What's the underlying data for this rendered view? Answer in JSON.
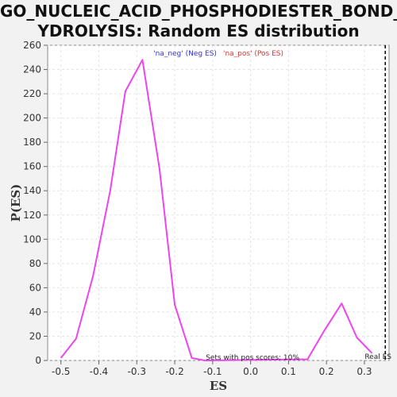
{
  "chart_data": {
    "type": "line",
    "title_line1": "GO_NUCLEIC_ACID_PHOSPHODIESTER_BOND_H",
    "title_line2": "YDROLYSIS: Random ES distribution",
    "xlabel": "ES",
    "ylabel": "P(ES)",
    "xlim": [
      -0.535,
      0.365
    ],
    "ylim": [
      0,
      260
    ],
    "x_ticks": [
      -0.5,
      -0.4,
      -0.3,
      -0.2,
      -0.1,
      0.0,
      0.1,
      0.2,
      0.3
    ],
    "x_tick_labels": [
      "-0.5",
      "-0.4",
      "-0.3",
      "-0.2",
      "-0.1",
      "0.0",
      "0.1",
      "0.2",
      "0.3"
    ],
    "y_ticks": [
      0,
      20,
      40,
      60,
      80,
      100,
      120,
      140,
      160,
      180,
      200,
      220,
      240,
      260
    ],
    "y_tick_labels": [
      "0",
      "20",
      "40",
      "60",
      "80",
      "100",
      "120",
      "140",
      "160",
      "180",
      "200",
      "220",
      "240",
      "260"
    ],
    "grid": true,
    "series": [
      {
        "name": "'na_neg' (Neg ES)",
        "color": "#ee44ee",
        "x": [
          -0.5,
          -0.46,
          -0.415,
          -0.37,
          -0.33,
          -0.285,
          -0.24,
          -0.2,
          -0.155,
          -0.12
        ],
        "y": [
          2,
          18,
          70,
          140,
          222,
          248,
          158,
          46,
          2,
          0
        ]
      },
      {
        "name": "'na_pos' (Pos ES)",
        "color": "#ee44ee",
        "x": [
          -0.12,
          0.15,
          0.195,
          0.24,
          0.28,
          0.32
        ],
        "y": [
          0,
          1,
          25,
          47,
          19,
          6
        ]
      }
    ],
    "legend": [
      {
        "label": "'na_neg' (Neg ES)",
        "color": "#3333cc"
      },
      {
        "label": "'na_pos' (Pos ES)",
        "color": "#dd3333"
      }
    ],
    "legend_position": "top-center",
    "annotation": "Sets with pos scores: 10%",
    "real_es": {
      "x": 0.355,
      "label": "Real ES"
    }
  }
}
